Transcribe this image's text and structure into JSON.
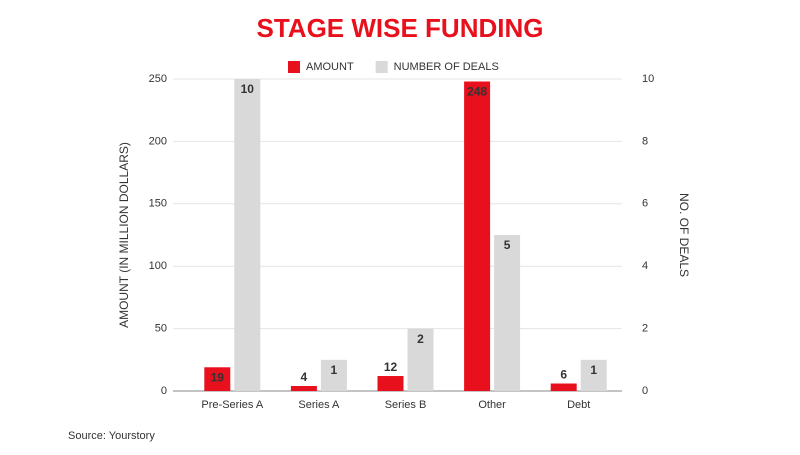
{
  "chart_data": {
    "type": "bar",
    "title": "STAGE WISE FUNDING",
    "categories": [
      "Pre-Series A",
      "Series A",
      "Series B",
      "Other",
      "Debt"
    ],
    "series": [
      {
        "name": "AMOUNT",
        "color": "#e8101c",
        "values": [
          19,
          4,
          12,
          248,
          6
        ]
      },
      {
        "name": "NUMBER OF DEALS",
        "color": "#d9d9d9",
        "values": [
          10,
          1,
          2,
          5,
          1
        ],
        "axis": "y2"
      }
    ],
    "ylabel": "AMOUNT (IN MILLION DOLLARS)",
    "y2label": "NO. OF DEALS",
    "ylim": [
      0,
      250
    ],
    "yticks": [
      0,
      50,
      100,
      150,
      200,
      250
    ],
    "y2lim": [
      0,
      10
    ],
    "y2ticks": [
      0,
      2,
      4,
      6,
      8,
      10
    ],
    "grid": true,
    "legend": "top",
    "source": "Source: Yourstory"
  }
}
